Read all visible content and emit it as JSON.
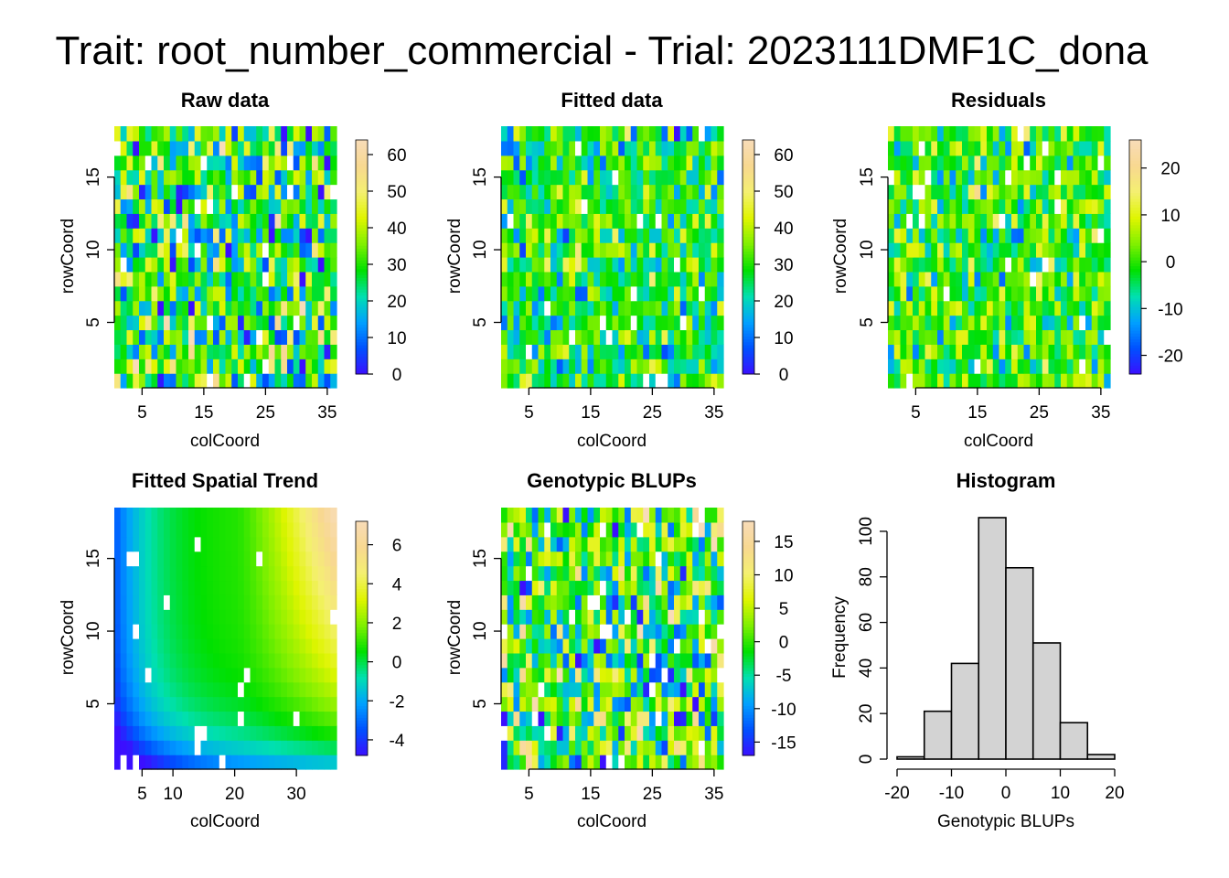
{
  "page_title": "Trait: root_number_commercial - Trial: 2023111DMF1C_dona",
  "palette": [
    "#3B0FFF",
    "#0050FF",
    "#00A0FF",
    "#00E0B0",
    "#00E000",
    "#7FF000",
    "#DFF500",
    "#F4F070",
    "#F8D890",
    "#F8DCB8"
  ],
  "cell_missing_color": "#FFFFFF",
  "bar_fill": "#D3D3D3",
  "chart_data": [
    {
      "type": "heatmap",
      "title": "Raw data",
      "xlabel": "colCoord",
      "ylabel": "rowCoord",
      "xlim": [
        1,
        36
      ],
      "ylim": [
        1,
        18
      ],
      "x_ticks": [
        "5",
        "15",
        "25",
        "35"
      ],
      "y_ticks": [
        "5",
        "10",
        "15"
      ],
      "colorbar_range": [
        0,
        64
      ],
      "colorbar_ticks": [
        "0",
        "10",
        "20",
        "30",
        "40",
        "50",
        "60"
      ],
      "cols": 36,
      "rows": 18,
      "value_center": 28,
      "value_spread": 14
    },
    {
      "type": "heatmap",
      "title": "Fitted data",
      "xlabel": "colCoord",
      "ylabel": "rowCoord",
      "xlim": [
        1,
        36
      ],
      "ylim": [
        1,
        18
      ],
      "x_ticks": [
        "5",
        "15",
        "25",
        "35"
      ],
      "y_ticks": [
        "5",
        "10",
        "15"
      ],
      "colorbar_range": [
        0,
        64
      ],
      "colorbar_ticks": [
        "0",
        "10",
        "20",
        "30",
        "40",
        "50",
        "60"
      ],
      "cols": 36,
      "rows": 18,
      "value_center": 28,
      "value_spread": 9
    },
    {
      "type": "heatmap",
      "title": "Residuals",
      "xlabel": "colCoord",
      "ylabel": "rowCoord",
      "xlim": [
        1,
        36
      ],
      "ylim": [
        1,
        18
      ],
      "x_ticks": [
        "5",
        "15",
        "25",
        "35"
      ],
      "y_ticks": [
        "5",
        "10",
        "15"
      ],
      "colorbar_range": [
        -24,
        26
      ],
      "colorbar_ticks": [
        "-20",
        "-10",
        "0",
        "10",
        "20"
      ],
      "cols": 36,
      "rows": 18,
      "value_center": 0,
      "value_spread": 7
    },
    {
      "type": "heatmap",
      "title": "Fitted Spatial Trend",
      "xlabel": "colCoord",
      "ylabel": "rowCoord",
      "xlim": [
        1,
        36
      ],
      "ylim": [
        1,
        18
      ],
      "x_ticks": [
        "5",
        "10",
        "20",
        "30"
      ],
      "y_ticks": [
        "5",
        "10",
        "15"
      ],
      "colorbar_range": [
        -4.8,
        7.2
      ],
      "colorbar_ticks": [
        "-4",
        "-2",
        "0",
        "2",
        "4",
        "6"
      ],
      "cols": 36,
      "rows": 18,
      "smooth": true,
      "missing_cells": [
        [
          3,
          15
        ],
        [
          4,
          15
        ],
        [
          14,
          16
        ],
        [
          24,
          15
        ],
        [
          9,
          12
        ],
        [
          4,
          10
        ],
        [
          36,
          11
        ],
        [
          6,
          7
        ],
        [
          22,
          7
        ],
        [
          21,
          6
        ],
        [
          30,
          4
        ],
        [
          21,
          4
        ],
        [
          14,
          3
        ],
        [
          15,
          3
        ],
        [
          14,
          2
        ],
        [
          2,
          1
        ],
        [
          4,
          1
        ],
        [
          18,
          1
        ]
      ]
    },
    {
      "type": "heatmap",
      "title": "Genotypic BLUPs",
      "xlabel": "colCoord",
      "ylabel": "rowCoord",
      "xlim": [
        1,
        36
      ],
      "ylim": [
        1,
        18
      ],
      "x_ticks": [
        "5",
        "15",
        "25",
        "35"
      ],
      "y_ticks": [
        "5",
        "10",
        "15"
      ],
      "colorbar_range": [
        -17,
        18
      ],
      "colorbar_ticks": [
        "-15",
        "-10",
        "-5",
        "0",
        "5",
        "10",
        "15"
      ],
      "cols": 36,
      "rows": 18,
      "value_center": 0,
      "value_spread": 8
    },
    {
      "type": "bar",
      "title": "Histogram",
      "xlabel": "Genotypic BLUPs",
      "ylabel": "Frequency",
      "bins": [
        [
          -20,
          -15
        ],
        [
          -15,
          -10
        ],
        [
          -10,
          -5
        ],
        [
          -5,
          0
        ],
        [
          0,
          5
        ],
        [
          5,
          10
        ],
        [
          10,
          15
        ],
        [
          15,
          20
        ]
      ],
      "values": [
        1,
        21,
        42,
        106,
        84,
        51,
        16,
        2
      ],
      "xlim": [
        -20,
        20
      ],
      "ylim": [
        0,
        106
      ],
      "x_ticks": [
        "-20",
        "-10",
        "0",
        "10",
        "20"
      ],
      "y_ticks": [
        "0",
        "20",
        "40",
        "60",
        "80",
        "100"
      ]
    }
  ]
}
